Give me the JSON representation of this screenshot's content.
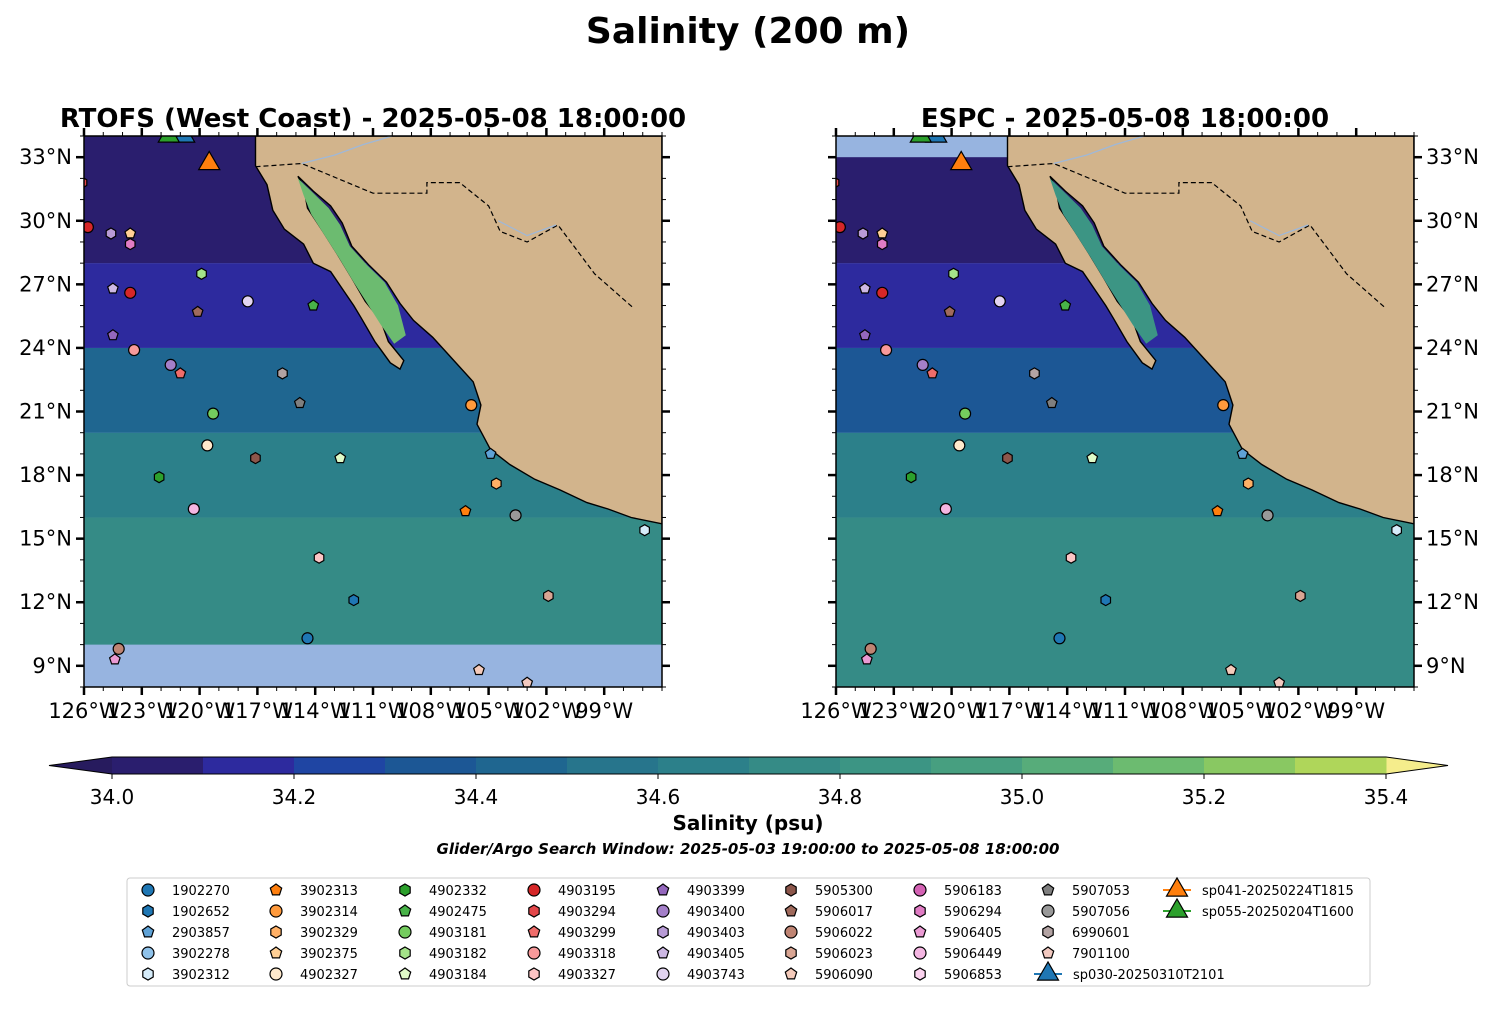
{
  "figure_title": "Salinity (200 m)",
  "chart_data": {
    "type": "heatmap",
    "panels": [
      {
        "title": "RTOFS (West Coast) - 2025-05-08 18:00:00",
        "lon_range": [
          -126,
          -96
        ],
        "lat_range": [
          8,
          34
        ],
        "ylabels_side": "left",
        "salinity_by_lat": [
          {
            "lat_min": 8,
            "lat_max": 10,
            "value": null
          },
          {
            "lat_min": 10,
            "lat_max": 16,
            "value": 34.72
          },
          {
            "lat_min": 16,
            "lat_max": 20,
            "value": 34.62
          },
          {
            "lat_min": 20,
            "lat_max": 24,
            "value": 34.42
          },
          {
            "lat_min": 24,
            "lat_max": 28,
            "value": 34.18
          },
          {
            "lat_min": 28,
            "lat_max": 34,
            "value": 34.05
          }
        ],
        "gulf_salinity": 35.15
      },
      {
        "title": "ESPC - 2025-05-08 18:00:00",
        "lon_range": [
          -126,
          -96
        ],
        "lat_range": [
          8,
          34
        ],
        "ylabels_side": "right",
        "salinity_by_lat": [
          {
            "lat_min": 8,
            "lat_max": 16,
            "value": 34.72
          },
          {
            "lat_min": 16,
            "lat_max": 20,
            "value": 34.62
          },
          {
            "lat_min": 20,
            "lat_max": 24,
            "value": 34.38
          },
          {
            "lat_min": 24,
            "lat_max": 28,
            "value": 34.15
          },
          {
            "lat_min": 28,
            "lat_max": 33,
            "value": 34.02
          }
        ],
        "gulf_salinity": 34.85
      }
    ],
    "x_ticks": [
      "126°W",
      "123°W",
      "120°W",
      "117°W",
      "114°W",
      "111°W",
      "108°W",
      "105°W",
      "102°W",
      "99°W"
    ],
    "x_tick_values": [
      -126,
      -123,
      -120,
      -117,
      -114,
      -111,
      -108,
      -105,
      -102,
      -99
    ],
    "y_ticks": [
      "9°N",
      "12°N",
      "15°N",
      "18°N",
      "21°N",
      "24°N",
      "27°N",
      "30°N",
      "33°N"
    ],
    "y_tick_values": [
      9,
      12,
      15,
      18,
      21,
      24,
      27,
      30,
      33
    ],
    "colorbar": {
      "label": "Salinity (psu)",
      "levels": [
        34.0,
        34.1,
        34.2,
        34.3,
        34.4,
        34.5,
        34.6,
        34.7,
        34.8,
        34.9,
        35.0,
        35.1,
        35.2,
        35.3,
        35.4
      ],
      "colors": [
        "#2a1e6e",
        "#2d2a9e",
        "#1f45a3",
        "#1c5795",
        "#1f6690",
        "#27758c",
        "#2c808a",
        "#358b86",
        "#3c9584",
        "#479f80",
        "#57ac7a",
        "#6cbb70",
        "#89c862",
        "#afd65a",
        "#d6e26c"
      ],
      "under_color": "#271b5e",
      "over_color": "#f5ed8c",
      "tick_labels": [
        "34.0",
        "34.2",
        "34.4",
        "34.6",
        "34.8",
        "35.0",
        "35.2",
        "35.4"
      ],
      "tick_values": [
        34.0,
        34.2,
        34.4,
        34.6,
        34.8,
        35.0,
        35.2,
        35.4
      ]
    },
    "land_color": "#d2b48c",
    "nodata_color": "#97b4e0",
    "search_window": "Glider/Argo Search Window: 2025-05-03 19:00:00 to 2025-05-08 18:00:00",
    "floats": [
      {
        "id": "1902270",
        "shape": "circle",
        "color": "#1f77b4"
      },
      {
        "id": "1902652",
        "shape": "hexagon",
        "color": "#1f77b4"
      },
      {
        "id": "2903857",
        "shape": "pentagon",
        "color": "#5fa2d6"
      },
      {
        "id": "3902278",
        "shape": "circle",
        "color": "#8fc2ea"
      },
      {
        "id": "3902312",
        "shape": "hexagon",
        "color": "#d6ecfa"
      },
      {
        "id": "3902313",
        "shape": "pentagon",
        "color": "#ff7f0e"
      },
      {
        "id": "3902314",
        "shape": "circle",
        "color": "#ff9a3c"
      },
      {
        "id": "3902329",
        "shape": "hexagon",
        "color": "#ffb066"
      },
      {
        "id": "3902375",
        "shape": "pentagon",
        "color": "#ffcf95"
      },
      {
        "id": "4902327",
        "shape": "circle",
        "color": "#ffe9cc"
      },
      {
        "id": "4902332",
        "shape": "hexagon",
        "color": "#2ca02c"
      },
      {
        "id": "4902475",
        "shape": "pentagon",
        "color": "#48b348"
      },
      {
        "id": "4903181",
        "shape": "circle",
        "color": "#74cc5e"
      },
      {
        "id": "4903182",
        "shape": "hexagon",
        "color": "#a4e389"
      },
      {
        "id": "4903184",
        "shape": "pentagon",
        "color": "#e0fbc8"
      },
      {
        "id": "4903195",
        "shape": "circle",
        "color": "#d62728"
      },
      {
        "id": "4903294",
        "shape": "hexagon",
        "color": "#e3474a"
      },
      {
        "id": "4903299",
        "shape": "pentagon",
        "color": "#ef6c6a"
      },
      {
        "id": "4903318",
        "shape": "circle",
        "color": "#f7999a"
      },
      {
        "id": "4903327",
        "shape": "hexagon",
        "color": "#fcc5c5"
      },
      {
        "id": "4903399",
        "shape": "pentagon",
        "color": "#9467bd"
      },
      {
        "id": "4903400",
        "shape": "circle",
        "color": "#a47fc9"
      },
      {
        "id": "4903403",
        "shape": "hexagon",
        "color": "#b89bd6"
      },
      {
        "id": "4903405",
        "shape": "pentagon",
        "color": "#cdb8e4"
      },
      {
        "id": "4903743",
        "shape": "circle",
        "color": "#e2d4f1"
      },
      {
        "id": "5905300",
        "shape": "hexagon",
        "color": "#8c564b"
      },
      {
        "id": "5906017",
        "shape": "pentagon",
        "color": "#a06a5c"
      },
      {
        "id": "5906022",
        "shape": "circle",
        "color": "#bf8473"
      },
      {
        "id": "5906023",
        "shape": "hexagon",
        "color": "#d9a593"
      },
      {
        "id": "5906090",
        "shape": "pentagon",
        "color": "#f5cbbb"
      },
      {
        "id": "5906183",
        "shape": "circle",
        "color": "#d462b4"
      },
      {
        "id": "5906294",
        "shape": "hexagon",
        "color": "#e07cc4"
      },
      {
        "id": "5906405",
        "shape": "pentagon",
        "color": "#ea9ad3"
      },
      {
        "id": "5906449",
        "shape": "circle",
        "color": "#f4b6e2"
      },
      {
        "id": "5906853",
        "shape": "hexagon",
        "color": "#fbd3ef"
      },
      {
        "id": "5907053",
        "shape": "pentagon",
        "color": "#7f7f7f"
      },
      {
        "id": "5907056",
        "shape": "circle",
        "color": "#999999"
      },
      {
        "id": "6990601",
        "shape": "hexagon",
        "color": "#b3a3a3"
      },
      {
        "id": "7901100",
        "shape": "pentagon",
        "color": "#f2c9c0"
      },
      {
        "id": "sp030-20250310T2101",
        "shape": "triangle",
        "color": "#1f77b4"
      },
      {
        "id": "sp041-20250224T1815",
        "shape": "triangle",
        "color": "#ff7f0e"
      },
      {
        "id": "sp055-20250204T1600",
        "shape": "triangle",
        "color": "#2ca02c"
      }
    ],
    "positions": [
      {
        "id": "4903294",
        "lon": -126.1,
        "lat": 31.8
      },
      {
        "id": "4903195",
        "lon": -125.8,
        "lat": 29.7
      },
      {
        "id": "4903399",
        "lon": -124.5,
        "lat": 24.6
      },
      {
        "id": "4903403",
        "lon": -124.6,
        "lat": 29.4
      },
      {
        "id": "3902375",
        "lon": -123.6,
        "lat": 29.4
      },
      {
        "id": "5906294",
        "lon": -123.6,
        "lat": 28.9
      },
      {
        "id": "4903405",
        "lon": -124.5,
        "lat": 26.8
      },
      {
        "id": "4903195",
        "lon": -123.6,
        "lat": 26.6
      },
      {
        "id": "4903318",
        "lon": -123.4,
        "lat": 23.9
      },
      {
        "id": "4903400",
        "lon": -121.5,
        "lat": 23.2
      },
      {
        "id": "4903299",
        "lon": -121.0,
        "lat": 22.8
      },
      {
        "id": "5906017",
        "lon": -120.1,
        "lat": 25.7
      },
      {
        "id": "4903182",
        "lon": -119.9,
        "lat": 27.5
      },
      {
        "id": "4903743",
        "lon": -117.5,
        "lat": 26.2
      },
      {
        "id": "4902475",
        "lon": -114.1,
        "lat": 26.0
      },
      {
        "id": "6990601",
        "lon": -115.7,
        "lat": 22.8
      },
      {
        "id": "5907053",
        "lon": -114.8,
        "lat": 21.4
      },
      {
        "id": "4903181",
        "lon": -119.3,
        "lat": 20.9
      },
      {
        "id": "4902327",
        "lon": -119.6,
        "lat": 19.4
      },
      {
        "id": "5905300",
        "lon": -117.1,
        "lat": 18.8
      },
      {
        "id": "4903184",
        "lon": -112.7,
        "lat": 18.8
      },
      {
        "id": "4902332",
        "lon": -122.1,
        "lat": 17.9
      },
      {
        "id": "5906449",
        "lon": -120.3,
        "lat": 16.4
      },
      {
        "id": "3902314",
        "lon": -105.9,
        "lat": 21.3
      },
      {
        "id": "2903857",
        "lon": -104.9,
        "lat": 19.0
      },
      {
        "id": "3902329",
        "lon": -104.6,
        "lat": 17.6
      },
      {
        "id": "3902313",
        "lon": -106.2,
        "lat": 16.3
      },
      {
        "id": "5907056",
        "lon": -103.6,
        "lat": 16.1
      },
      {
        "id": "3902312",
        "lon": -96.9,
        "lat": 15.4
      },
      {
        "id": "4903327",
        "lon": -113.8,
        "lat": 14.1
      },
      {
        "id": "1902652",
        "lon": -112.0,
        "lat": 12.1
      },
      {
        "id": "5906023",
        "lon": -101.9,
        "lat": 12.3
      },
      {
        "id": "1902270",
        "lon": -114.4,
        "lat": 10.3
      },
      {
        "id": "5906022",
        "lon": -124.2,
        "lat": 9.8
      },
      {
        "id": "5906405",
        "lon": -124.4,
        "lat": 9.3
      },
      {
        "id": "5906090",
        "lon": -105.5,
        "lat": 8.8
      },
      {
        "id": "7901100",
        "lon": -103.0,
        "lat": 8.2
      },
      {
        "id": "sp030-20250310T2101",
        "lon": -120.8,
        "lat": 34.0
      },
      {
        "id": "sp041-20250224T1815",
        "lon": -119.5,
        "lat": 32.7
      },
      {
        "id": "sp055-20250204T1600",
        "lon": -121.6,
        "lat": 34.0
      }
    ]
  }
}
